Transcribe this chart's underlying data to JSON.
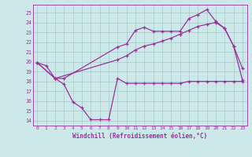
{
  "xlabel": "Windchill (Refroidissement éolien,°C)",
  "bg_color": "#cce8e8",
  "grid_color": "#aacece",
  "line_color": "#993399",
  "x_ticks": [
    0,
    1,
    2,
    3,
    4,
    5,
    6,
    7,
    8,
    9,
    10,
    11,
    12,
    13,
    14,
    15,
    16,
    17,
    18,
    19,
    20,
    21,
    22,
    23
  ],
  "ylim": [
    13.5,
    25.8
  ],
  "xlim": [
    -0.5,
    23.5
  ],
  "yticks": [
    14,
    15,
    16,
    17,
    18,
    19,
    20,
    21,
    22,
    23,
    24,
    25
  ],
  "series": {
    "line1_x": [
      0,
      1,
      2,
      3,
      4,
      5,
      6,
      7,
      8,
      9,
      10,
      11,
      12,
      13,
      14,
      15,
      16,
      17,
      18,
      19,
      20,
      21,
      22,
      23
    ],
    "line1_y": [
      19.9,
      19.6,
      18.3,
      17.7,
      15.9,
      15.3,
      14.1,
      14.1,
      14.1,
      18.3,
      17.8,
      17.8,
      17.8,
      17.8,
      17.8,
      17.8,
      17.8,
      18.0,
      18.0,
      18.0,
      18.0,
      18.0,
      18.0,
      18.0
    ],
    "line2_x": [
      0,
      2,
      3,
      9,
      10,
      11,
      12,
      13,
      14,
      15,
      16,
      17,
      18,
      19,
      20,
      21,
      22,
      23
    ],
    "line2_y": [
      19.9,
      18.3,
      18.3,
      21.5,
      21.8,
      23.2,
      23.5,
      23.1,
      23.1,
      23.1,
      23.1,
      24.4,
      24.8,
      25.3,
      24.1,
      23.4,
      21.6,
      19.3
    ],
    "line3_x": [
      0,
      2,
      9,
      10,
      11,
      12,
      13,
      14,
      15,
      16,
      17,
      18,
      19,
      20,
      21,
      22,
      23
    ],
    "line3_y": [
      19.9,
      18.3,
      20.2,
      20.6,
      21.2,
      21.6,
      21.8,
      22.1,
      22.4,
      22.8,
      23.2,
      23.6,
      23.8,
      24.0,
      23.4,
      21.6,
      18.1
    ]
  }
}
